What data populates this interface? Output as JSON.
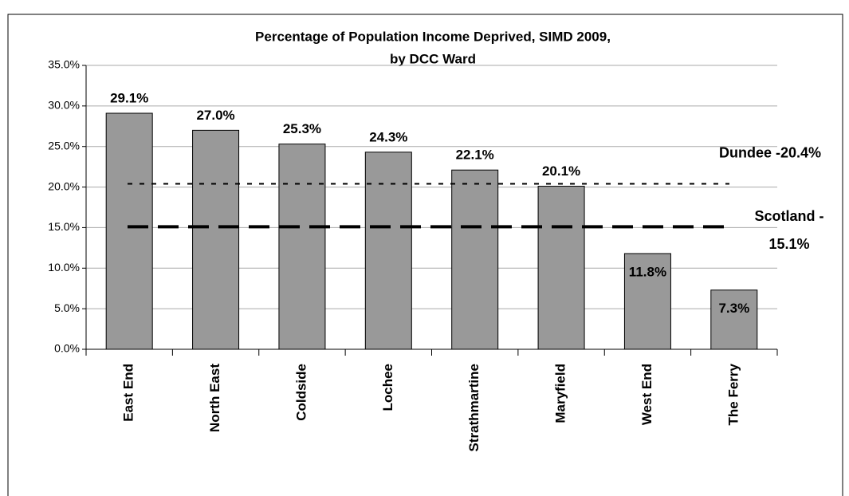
{
  "chart_data": {
    "type": "bar",
    "title_lines": [
      "Percentage of Population Income Deprived, SIMD 2009,",
      "by DCC Ward"
    ],
    "categories": [
      "East End",
      "North East",
      "Coldside",
      "Lochee",
      "Strathmartine",
      "Maryfield",
      "West End",
      "The Ferry"
    ],
    "values": [
      29.1,
      27.0,
      25.3,
      24.3,
      22.1,
      20.1,
      11.8,
      7.3
    ],
    "value_labels": [
      "29.1%",
      "27.0%",
      "25.3%",
      "24.3%",
      "22.1%",
      "20.1%",
      "11.8%",
      "7.3%"
    ],
    "color": "#999999",
    "ylim": [
      0,
      35
    ],
    "yticks": [
      {
        "value": 0,
        "label": "0.0%"
      },
      {
        "value": 5,
        "label": "5.0%"
      },
      {
        "value": 10,
        "label": "10.0%"
      },
      {
        "value": 15,
        "label": "15.0%"
      },
      {
        "value": 20,
        "label": "20.0%"
      },
      {
        "value": 25,
        "label": "25.0%"
      },
      {
        "value": 30,
        "label": "30.0%"
      },
      {
        "value": 35,
        "label": "35.0%"
      }
    ],
    "grid": true,
    "reference_lines": [
      {
        "value": 20.4,
        "label_lines": [
          "Dundee -20.4%"
        ],
        "style": "dotted"
      },
      {
        "value": 15.1,
        "label_lines": [
          "Scotland -",
          "15.1%"
        ],
        "style": "dashed"
      }
    ]
  }
}
